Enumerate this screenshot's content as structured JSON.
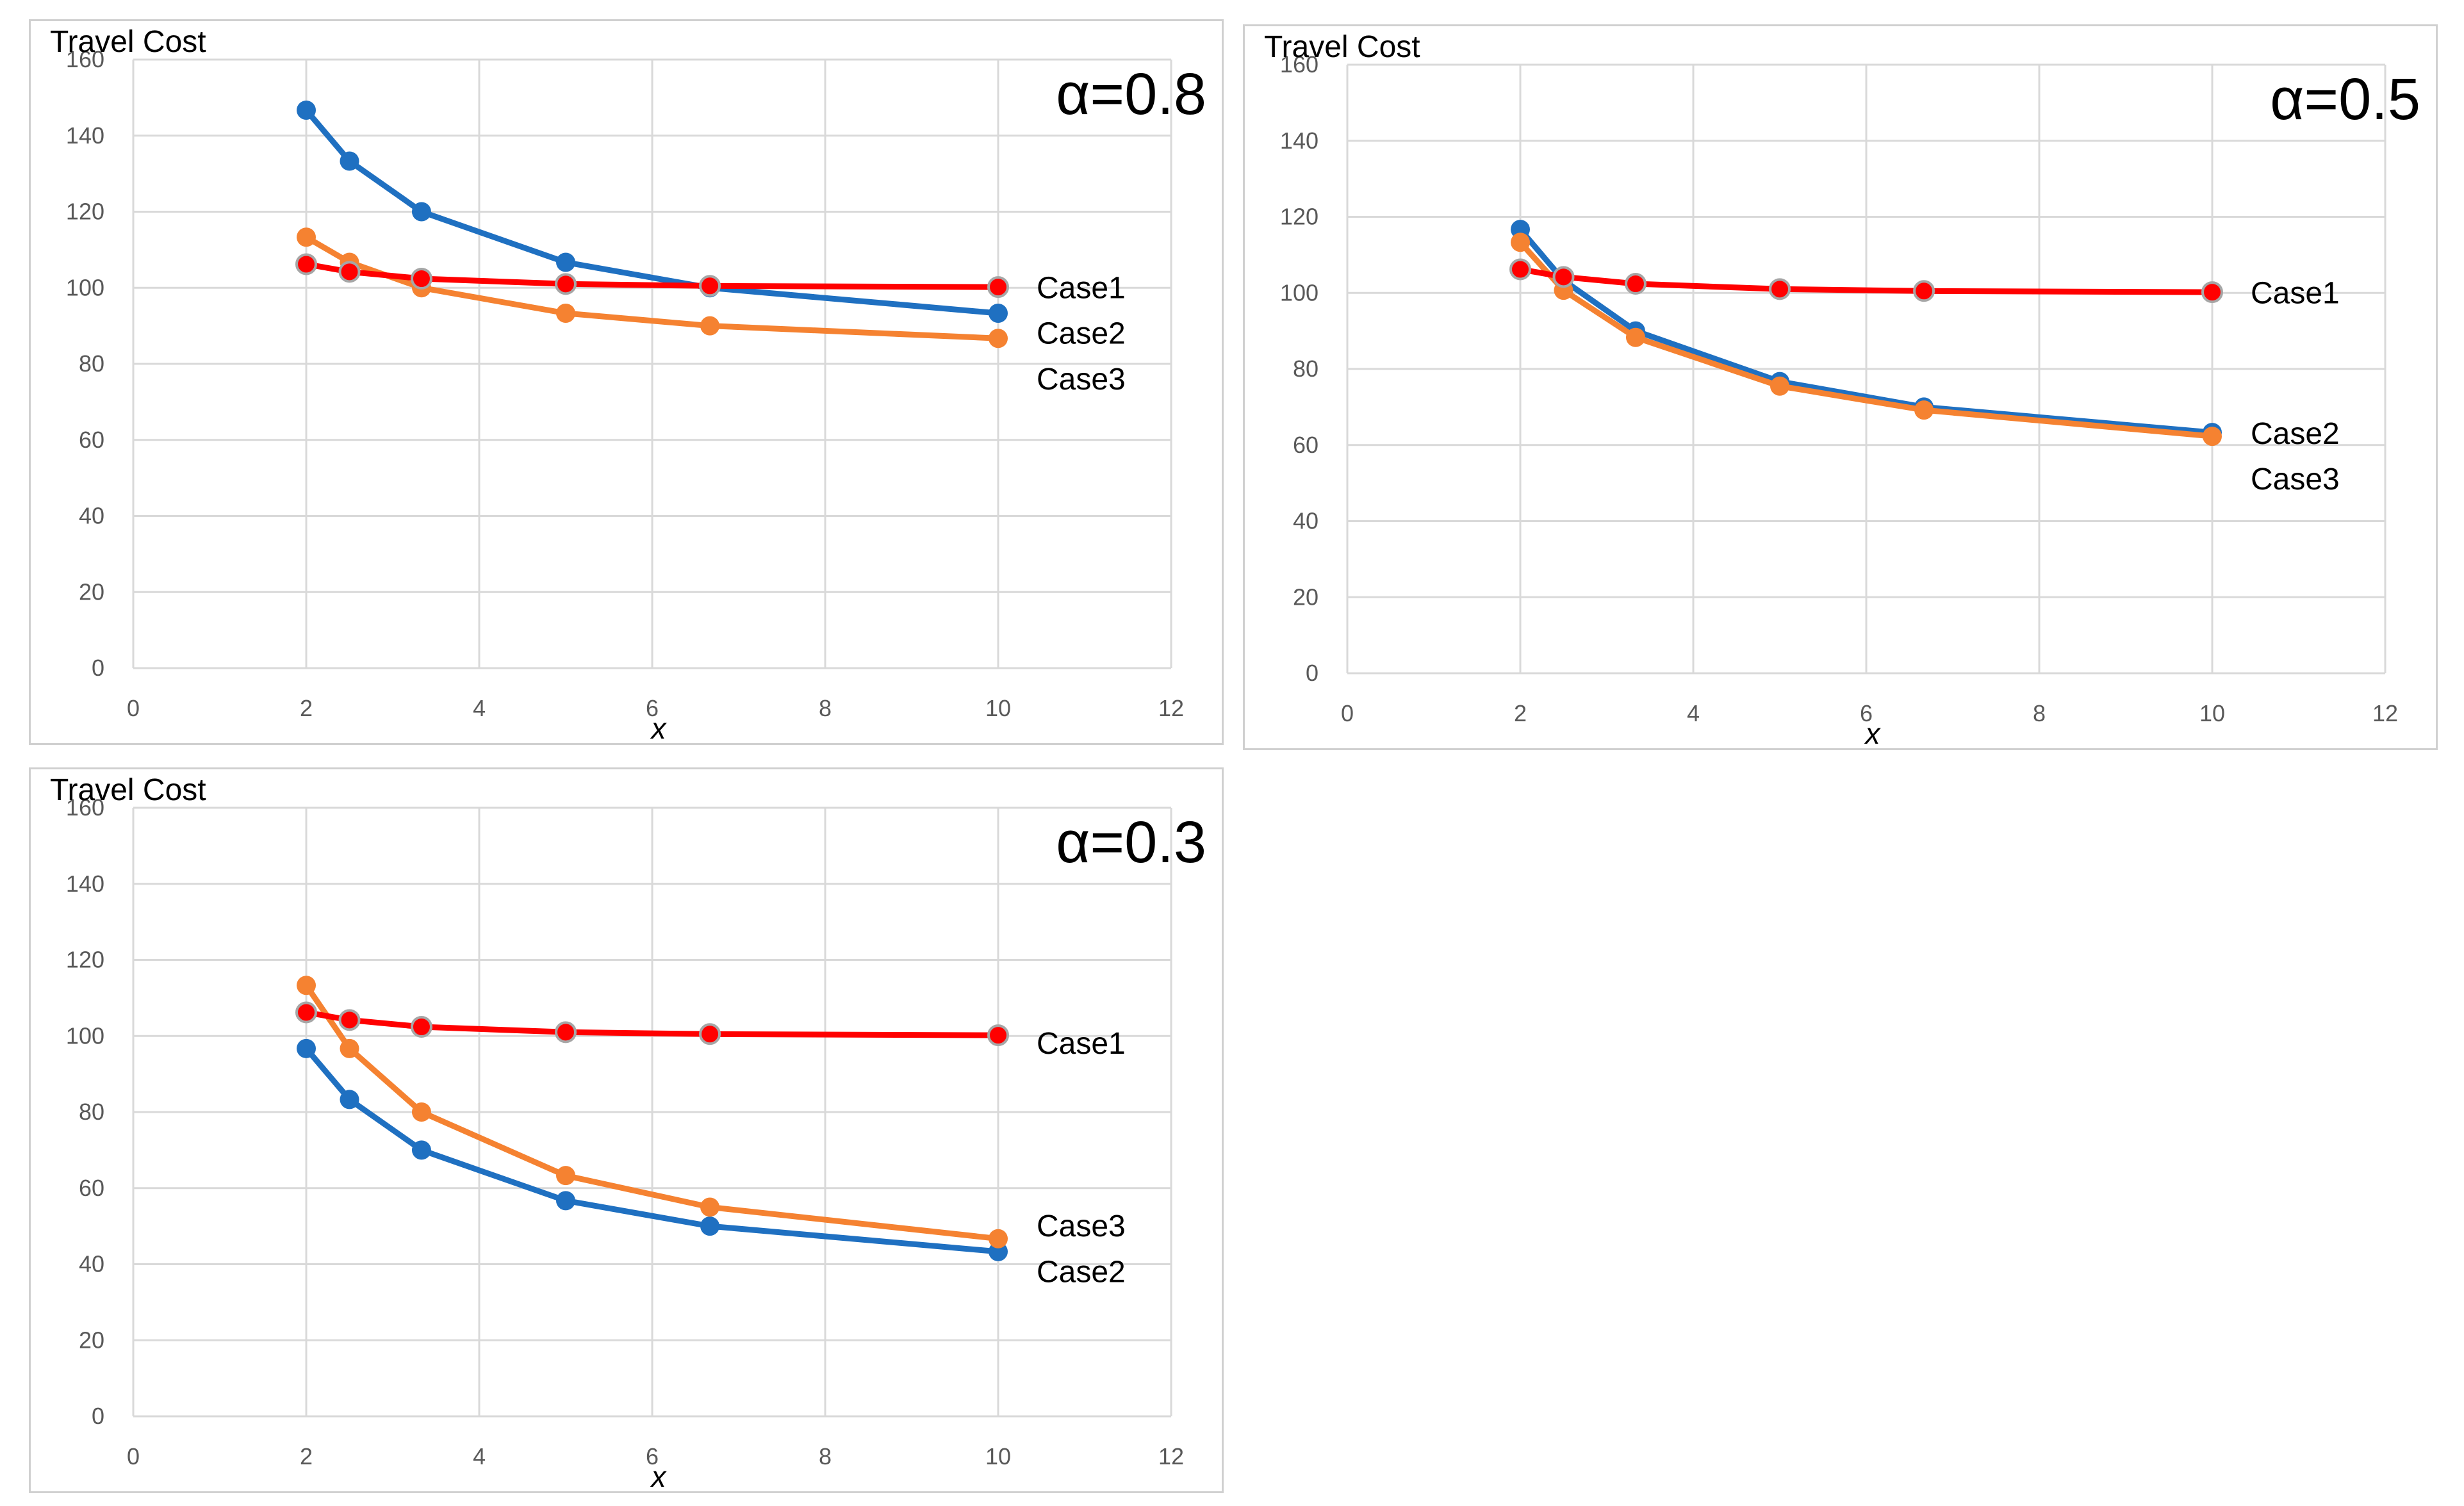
{
  "chart_data": [
    {
      "type": "line",
      "title": "α=0.8",
      "ylabel": "Travel Cost",
      "xlabel": "x",
      "xlim": [
        0,
        12
      ],
      "ylim": [
        0,
        160
      ],
      "xticks": [
        0,
        2,
        4,
        6,
        8,
        10,
        12
      ],
      "yticks": [
        0,
        20,
        40,
        60,
        80,
        100,
        120,
        140,
        160
      ],
      "grid": true,
      "x": [
        2,
        2.5,
        3.333,
        5,
        6.667,
        10
      ],
      "series": [
        {
          "name": "Case2",
          "color": "#1f70c1",
          "values": [
            146.7,
            133.3,
            120,
            106.7,
            100,
            93.3
          ]
        },
        {
          "name": "Case3",
          "color": "#f58231",
          "values": [
            113.3,
            106.7,
            100,
            93.3,
            90,
            86.7
          ]
        },
        {
          "name": "Case1",
          "color": "#ff0000",
          "values": [
            106.2,
            104.2,
            102.4,
            101,
            100.5,
            100.2
          ]
        }
      ],
      "series_labels": [
        {
          "text": "Case1",
          "y": 100
        },
        {
          "text": "Case2",
          "y": 88
        },
        {
          "text": "Case3",
          "y": 76
        }
      ]
    },
    {
      "type": "line",
      "title": "α=0.5",
      "ylabel": "Travel Cost",
      "xlabel": "x",
      "xlim": [
        0,
        12
      ],
      "ylim": [
        0,
        160
      ],
      "xticks": [
        0,
        2,
        4,
        6,
        8,
        10,
        12
      ],
      "yticks": [
        0,
        20,
        40,
        60,
        80,
        100,
        120,
        140,
        160
      ],
      "grid": true,
      "x": [
        2,
        2.5,
        3.333,
        5,
        6.667,
        10
      ],
      "series": [
        {
          "name": "Case2",
          "color": "#1f70c1",
          "values": [
            116.7,
            103.3,
            90,
            76.7,
            70,
            63.3
          ]
        },
        {
          "name": "Case3",
          "color": "#f58231",
          "values": [
            113.3,
            100.7,
            88.3,
            75.5,
            69.2,
            62.3
          ]
        },
        {
          "name": "Case1",
          "color": "#ff0000",
          "values": [
            106.2,
            104.2,
            102.4,
            101,
            100.5,
            100.2
          ]
        }
      ],
      "series_labels": [
        {
          "text": "Case1",
          "y": 100
        },
        {
          "text": "Case2",
          "y": 63
        },
        {
          "text": "Case3",
          "y": 51
        }
      ]
    },
    {
      "type": "line",
      "title": "α=0.3",
      "ylabel": "Travel Cost",
      "xlabel": "x",
      "xlim": [
        0,
        12
      ],
      "ylim": [
        0,
        160
      ],
      "xticks": [
        0,
        2,
        4,
        6,
        8,
        10,
        12
      ],
      "yticks": [
        0,
        20,
        40,
        60,
        80,
        100,
        120,
        140,
        160
      ],
      "grid": true,
      "x": [
        2,
        2.5,
        3.333,
        5,
        6.667,
        10
      ],
      "series": [
        {
          "name": "Case2",
          "color": "#1f70c1",
          "values": [
            96.7,
            83.3,
            70,
            56.7,
            50,
            43.3
          ]
        },
        {
          "name": "Case3",
          "color": "#f58231",
          "values": [
            113.3,
            96.7,
            80,
            63.3,
            55,
            46.7
          ]
        },
        {
          "name": "Case1",
          "color": "#ff0000",
          "values": [
            106.2,
            104.2,
            102.4,
            101,
            100.5,
            100.2
          ]
        }
      ],
      "series_labels": [
        {
          "text": "Case1",
          "y": 98
        },
        {
          "text": "Case3",
          "y": 50
        },
        {
          "text": "Case2",
          "y": 38
        }
      ]
    }
  ]
}
